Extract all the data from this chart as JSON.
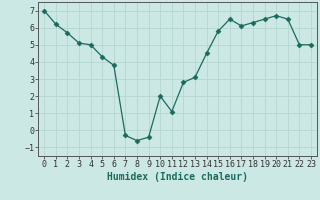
{
  "x": [
    0,
    1,
    2,
    3,
    4,
    5,
    6,
    7,
    8,
    9,
    10,
    11,
    12,
    13,
    14,
    15,
    16,
    17,
    18,
    19,
    20,
    21,
    22,
    23
  ],
  "y": [
    7.0,
    6.2,
    5.7,
    5.1,
    5.0,
    4.3,
    3.8,
    -0.3,
    -0.6,
    -0.4,
    2.0,
    1.1,
    2.8,
    3.1,
    4.5,
    5.8,
    6.5,
    6.1,
    6.3,
    6.5,
    6.7,
    6.5,
    5.0,
    5.0
  ],
  "line_color": "#1a6b5e",
  "marker": "D",
  "marker_size": 2.5,
  "bg_color": "#cce8e4",
  "grid_color": "#b8d8d4",
  "xlabel": "Humidex (Indice chaleur)",
  "xlim": [
    -0.5,
    23.5
  ],
  "ylim": [
    -1.5,
    7.5
  ],
  "yticks": [
    -1,
    0,
    1,
    2,
    3,
    4,
    5,
    6,
    7
  ],
  "xticks": [
    0,
    1,
    2,
    3,
    4,
    5,
    6,
    7,
    8,
    9,
    10,
    11,
    12,
    13,
    14,
    15,
    16,
    17,
    18,
    19,
    20,
    21,
    22,
    23
  ],
  "xlabel_fontsize": 7,
  "tick_fontsize": 6
}
